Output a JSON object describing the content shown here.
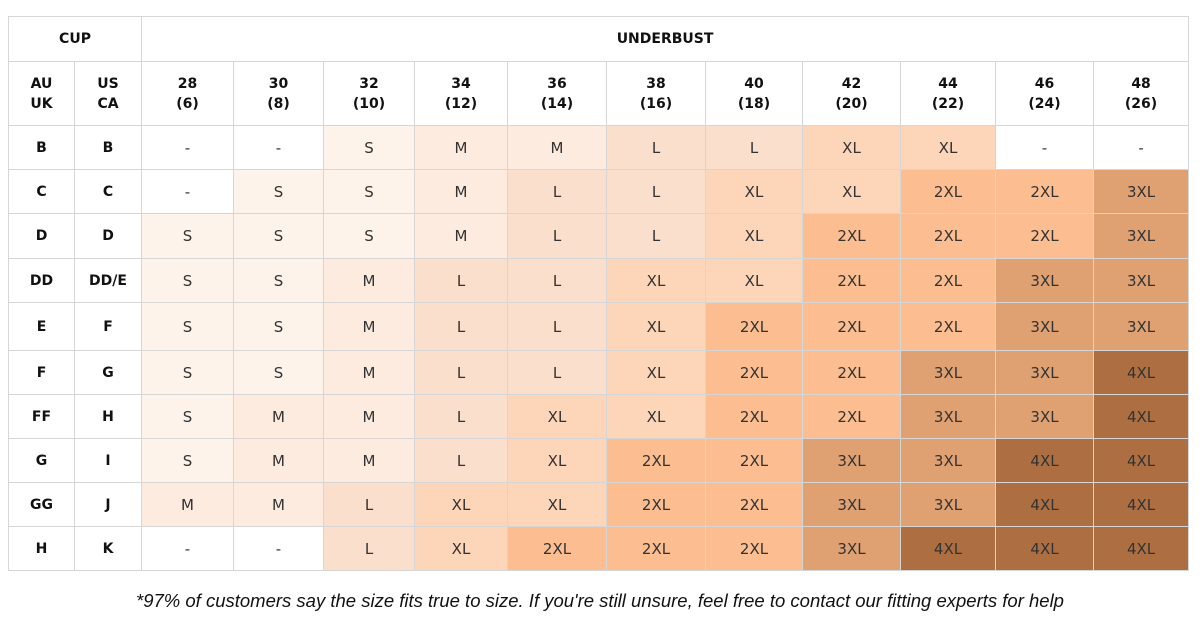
{
  "table": {
    "cup_header": "CUP",
    "underbust_header": "UNDERBUST",
    "cup_columns": [
      {
        "top": "AU",
        "bottom": "UK"
      },
      {
        "top": "US",
        "bottom": "CA"
      }
    ],
    "size_columns": [
      {
        "band": "28",
        "alt": "(6)"
      },
      {
        "band": "30",
        "alt": "(8)"
      },
      {
        "band": "32",
        "alt": "(10)"
      },
      {
        "band": "34",
        "alt": "(12)"
      },
      {
        "band": "36",
        "alt": "(14)"
      },
      {
        "band": "38",
        "alt": "(16)"
      },
      {
        "band": "40",
        "alt": "(18)"
      },
      {
        "band": "42",
        "alt": "(20)"
      },
      {
        "band": "44",
        "alt": "(22)"
      },
      {
        "band": "46",
        "alt": "(24)"
      },
      {
        "band": "48",
        "alt": "(26)"
      }
    ],
    "rows": [
      {
        "au_uk": "B",
        "us_ca": "B",
        "sizes": [
          "-",
          "-",
          "S",
          "M",
          "M",
          "L",
          "L",
          "XL",
          "XL",
          "-",
          "-"
        ]
      },
      {
        "au_uk": "C",
        "us_ca": "C",
        "sizes": [
          "-",
          "S",
          "S",
          "M",
          "L",
          "L",
          "XL",
          "XL",
          "2XL",
          "2XL",
          "3XL"
        ]
      },
      {
        "au_uk": "D",
        "us_ca": "D",
        "sizes": [
          "S",
          "S",
          "S",
          "M",
          "L",
          "L",
          "XL",
          "2XL",
          "2XL",
          "2XL",
          "3XL"
        ]
      },
      {
        "au_uk": "DD",
        "us_ca": "DD/E",
        "sizes": [
          "S",
          "S",
          "M",
          "L",
          "L",
          "XL",
          "XL",
          "2XL",
          "2XL",
          "3XL",
          "3XL"
        ]
      },
      {
        "au_uk": "E",
        "us_ca": "F",
        "sizes": [
          "S",
          "S",
          "M",
          "L",
          "L",
          "XL",
          "2XL",
          "2XL",
          "2XL",
          "3XL",
          "3XL"
        ]
      },
      {
        "au_uk": "F",
        "us_ca": "G",
        "sizes": [
          "S",
          "S",
          "M",
          "L",
          "L",
          "XL",
          "2XL",
          "2XL",
          "3XL",
          "3XL",
          "4XL"
        ]
      },
      {
        "au_uk": "FF",
        "us_ca": "H",
        "sizes": [
          "S",
          "M",
          "M",
          "L",
          "XL",
          "XL",
          "2XL",
          "2XL",
          "3XL",
          "3XL",
          "4XL"
        ]
      },
      {
        "au_uk": "G",
        "us_ca": "I",
        "sizes": [
          "S",
          "M",
          "M",
          "L",
          "XL",
          "2XL",
          "2XL",
          "3XL",
          "3XL",
          "4XL",
          "4XL"
        ]
      },
      {
        "au_uk": "GG",
        "us_ca": "J",
        "sizes": [
          "M",
          "M",
          "L",
          "XL",
          "XL",
          "2XL",
          "2XL",
          "3XL",
          "3XL",
          "4XL",
          "4XL"
        ]
      },
      {
        "au_uk": "H",
        "us_ca": "K",
        "sizes": [
          "-",
          "-",
          "L",
          "XL",
          "2XL",
          "2XL",
          "2XL",
          "3XL",
          "4XL",
          "4XL",
          "4XL"
        ]
      }
    ],
    "size_colors": {
      "-": "#ffffff",
      "S": "#fef3ea",
      "M": "#fdebdf",
      "L": "#fadfcd",
      "XL": "#fdd6b9",
      "2XL": "#fcbe91",
      "3XL": "#dfa072",
      "4XL": "#ad6e41"
    }
  },
  "footnote": "*97% of customers say the size fits true to size. If you're still unsure, feel free to contact our fitting experts for help"
}
